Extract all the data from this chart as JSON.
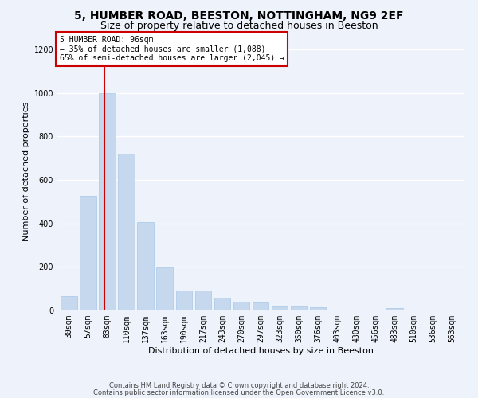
{
  "title1": "5, HUMBER ROAD, BEESTON, NOTTINGHAM, NG9 2EF",
  "title2": "Size of property relative to detached houses in Beeston",
  "xlabel": "Distribution of detached houses by size in Beeston",
  "ylabel": "Number of detached properties",
  "footer1": "Contains HM Land Registry data © Crown copyright and database right 2024.",
  "footer2": "Contains public sector information licensed under the Open Government Licence v3.0.",
  "annotation_title": "5 HUMBER ROAD: 96sqm",
  "annotation_line1": "← 35% of detached houses are smaller (1,088)",
  "annotation_line2": "65% of semi-detached houses are larger (2,045) →",
  "bar_color": "#c5d8ed",
  "bar_edge_color": "#a8c8e8",
  "redline_color": "#cc0000",
  "categories": [
    "30sqm",
    "57sqm",
    "83sqm",
    "110sqm",
    "137sqm",
    "163sqm",
    "190sqm",
    "217sqm",
    "243sqm",
    "270sqm",
    "297sqm",
    "323sqm",
    "350sqm",
    "376sqm",
    "403sqm",
    "430sqm",
    "456sqm",
    "483sqm",
    "510sqm",
    "536sqm",
    "563sqm"
  ],
  "values": [
    65,
    525,
    1000,
    720,
    405,
    197,
    90,
    90,
    58,
    40,
    35,
    20,
    20,
    15,
    2,
    2,
    2,
    10,
    2,
    2,
    2
  ],
  "redline_x": 1.85,
  "ylim": [
    0,
    1280
  ],
  "yticks": [
    0,
    200,
    400,
    600,
    800,
    1000,
    1200
  ],
  "bg_color": "#eef3fb",
  "plot_bg_color": "#eef3fb",
  "grid_color": "#ffffff",
  "title1_fontsize": 10,
  "title2_fontsize": 9,
  "xlabel_fontsize": 8,
  "ylabel_fontsize": 8,
  "tick_fontsize": 7,
  "annotation_fontsize": 7,
  "footer_fontsize": 6,
  "annotation_box_color": "#ffffff",
  "annotation_box_edge": "#cc0000"
}
